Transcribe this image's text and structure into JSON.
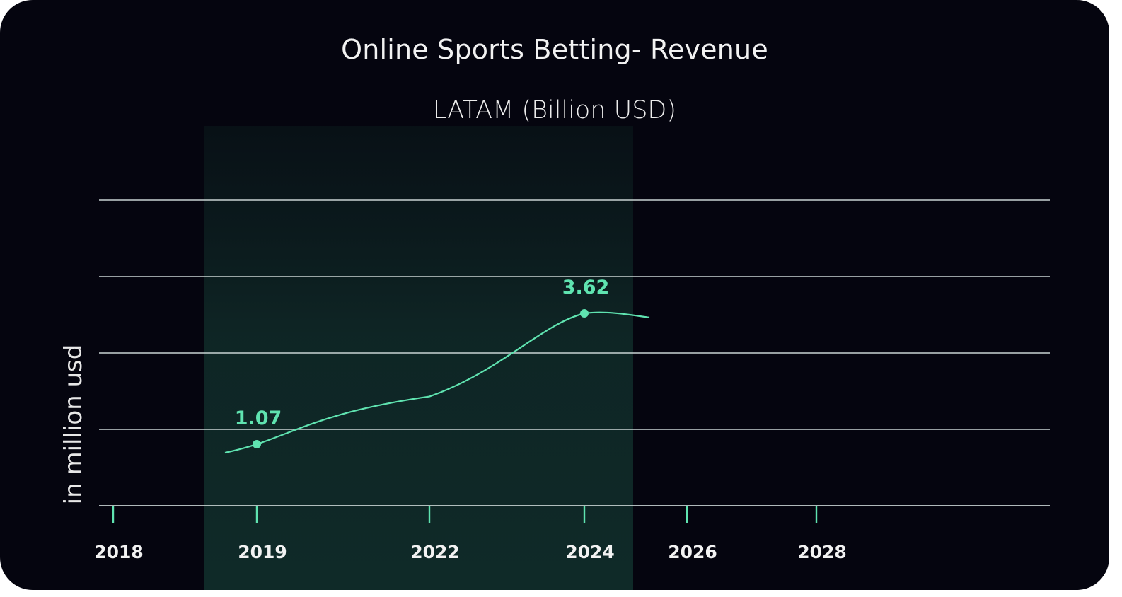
{
  "chart_data": {
    "type": "line",
    "title": "Online Sports Betting- Revenue",
    "subtitle": "LATAM (Billion USD)",
    "ylabel": "in million usd",
    "x_ticks": [
      "2018",
      "2019",
      "2022",
      "2024",
      "2026",
      "2028"
    ],
    "series": [
      {
        "x": [
          2019,
          2022,
          2024
        ],
        "y": [
          1.07,
          2.0,
          3.62
        ]
      }
    ],
    "data_labels": [
      {
        "x": 2019,
        "y": 1.07,
        "text": "1.07"
      },
      {
        "x": 2024,
        "y": 3.62,
        "text": "3.62"
      }
    ],
    "highlight_range": [
      2019,
      2024
    ],
    "grid": true,
    "colors": {
      "background": "#05050f",
      "line": "#5fe3b0",
      "highlight": "#0f2a28",
      "grid": "#c9d3d3",
      "tick": "#5fe3b0"
    }
  }
}
